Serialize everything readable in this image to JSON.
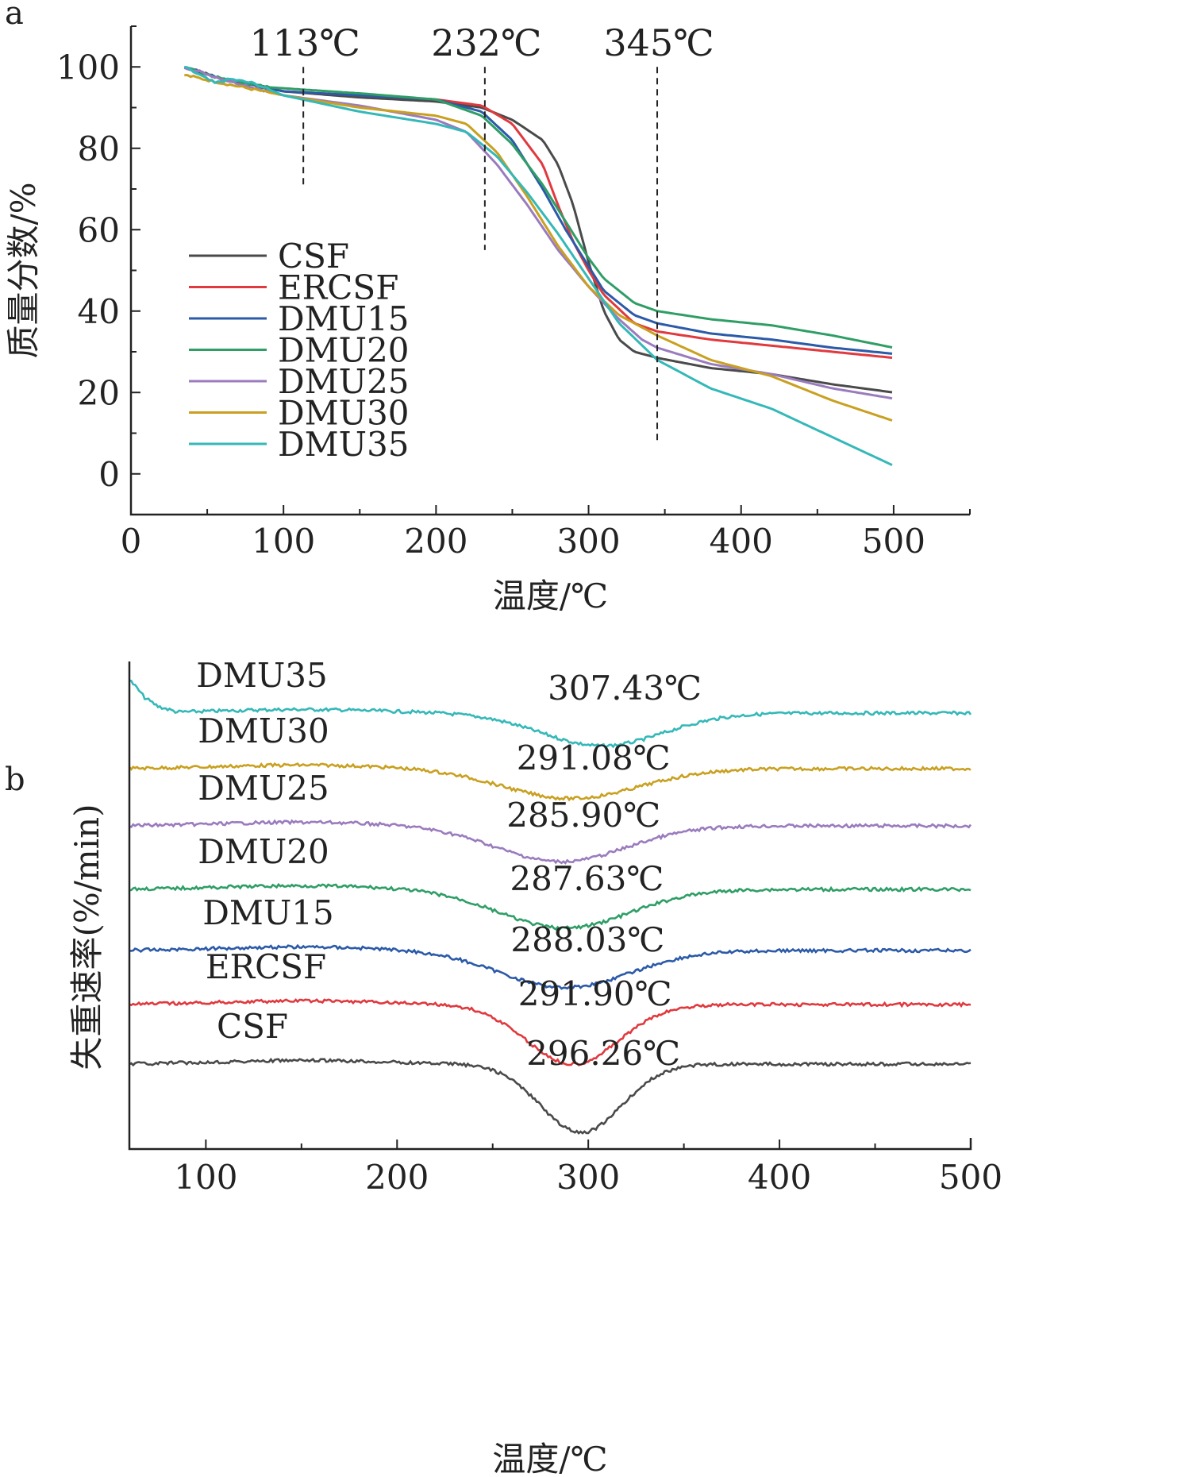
{
  "panel_labels": {
    "a": "a",
    "b": "b"
  },
  "chart_data": [
    {
      "id": "a",
      "type": "line",
      "xlabel": "温度/℃",
      "ylabel": "质量分数/%",
      "xlim": [
        0,
        550
      ],
      "ylim": [
        -10,
        110
      ],
      "xticks": [
        0,
        100,
        200,
        300,
        400,
        500
      ],
      "yticks": [
        0,
        20,
        40,
        60,
        80,
        100
      ],
      "legend_position": "middle-left",
      "vlines": [
        {
          "x": 113,
          "label": "113℃",
          "y_range": [
            70,
            100
          ]
        },
        {
          "x": 232,
          "label": "232℃",
          "y_range": [
            55,
            100
          ]
        },
        {
          "x": 345,
          "label": "345℃",
          "y_range": [
            8,
            100
          ]
        }
      ],
      "series": [
        {
          "name": "CSF",
          "color": "#4a4a4a",
          "points": [
            [
              35,
              100
            ],
            [
              60,
              97
            ],
            [
              100,
              94
            ],
            [
              150,
              92.5
            ],
            [
              200,
              91.5
            ],
            [
              230,
              90
            ],
            [
              250,
              87
            ],
            [
              270,
              82
            ],
            [
              280,
              76
            ],
            [
              290,
              66
            ],
            [
              300,
              52
            ],
            [
              310,
              40
            ],
            [
              320,
              33
            ],
            [
              330,
              30
            ],
            [
              345,
              28.5
            ],
            [
              380,
              26
            ],
            [
              420,
              24.5
            ],
            [
              460,
              22
            ],
            [
              500,
              20
            ]
          ]
        },
        {
          "name": "ERCSF",
          "color": "#e0393e",
          "points": [
            [
              35,
              100
            ],
            [
              60,
              97
            ],
            [
              100,
              94
            ],
            [
              150,
              93
            ],
            [
              200,
              92
            ],
            [
              230,
              90.5
            ],
            [
              250,
              86
            ],
            [
              270,
              76
            ],
            [
              280,
              66
            ],
            [
              290,
              57
            ],
            [
              300,
              50
            ],
            [
              310,
              44
            ],
            [
              330,
              37
            ],
            [
              345,
              35
            ],
            [
              380,
              33
            ],
            [
              420,
              31.5
            ],
            [
              460,
              30
            ],
            [
              500,
              28.5
            ]
          ]
        },
        {
          "name": "DMU15",
          "color": "#2b5aa8",
          "points": [
            [
              35,
              100
            ],
            [
              60,
              97
            ],
            [
              100,
              94
            ],
            [
              150,
              93
            ],
            [
              200,
              92
            ],
            [
              230,
              89
            ],
            [
              250,
              82
            ],
            [
              270,
              70
            ],
            [
              285,
              60
            ],
            [
              300,
              51
            ],
            [
              310,
              45
            ],
            [
              330,
              39
            ],
            [
              345,
              37
            ],
            [
              380,
              34.5
            ],
            [
              420,
              33
            ],
            [
              460,
              31
            ],
            [
              500,
              29.5
            ]
          ]
        },
        {
          "name": "DMU20",
          "color": "#2f9e66",
          "points": [
            [
              35,
              100
            ],
            [
              60,
              97
            ],
            [
              90,
              95
            ],
            [
              150,
              93.5
            ],
            [
              200,
              92
            ],
            [
              230,
              88
            ],
            [
              250,
              81
            ],
            [
              270,
              71
            ],
            [
              285,
              62
            ],
            [
              300,
              53
            ],
            [
              310,
              48
            ],
            [
              330,
              42
            ],
            [
              345,
              40
            ],
            [
              380,
              38
            ],
            [
              420,
              36.5
            ],
            [
              460,
              34
            ],
            [
              500,
              31
            ]
          ]
        },
        {
          "name": "DMU25",
          "color": "#9a7cbe",
          "points": [
            [
              35,
              100
            ],
            [
              60,
              97
            ],
            [
              100,
              93
            ],
            [
              150,
              90.5
            ],
            [
              200,
              87
            ],
            [
              220,
              84
            ],
            [
              240,
              76
            ],
            [
              260,
              66
            ],
            [
              280,
              55
            ],
            [
              300,
              46
            ],
            [
              320,
              38
            ],
            [
              335,
              33
            ],
            [
              345,
              31
            ],
            [
              380,
              27
            ],
            [
              420,
              24.5
            ],
            [
              460,
              21
            ],
            [
              500,
              18.5
            ]
          ]
        },
        {
          "name": "DMU30",
          "color": "#c9a020",
          "points": [
            [
              35,
              98
            ],
            [
              60,
              96
            ],
            [
              100,
              93
            ],
            [
              150,
              90
            ],
            [
              200,
              88
            ],
            [
              220,
              86
            ],
            [
              240,
              79
            ],
            [
              260,
              68
            ],
            [
              280,
              56
            ],
            [
              300,
              46
            ],
            [
              320,
              39
            ],
            [
              345,
              34
            ],
            [
              380,
              28
            ],
            [
              420,
              24
            ],
            [
              460,
              18
            ],
            [
              500,
              13
            ]
          ]
        },
        {
          "name": "DMU35",
          "color": "#35b8b8",
          "points": [
            [
              35,
              100
            ],
            [
              45,
              98
            ],
            [
              55,
              96
            ],
            [
              65,
              97
            ],
            [
              80,
              96
            ],
            [
              100,
              93
            ],
            [
              150,
              89
            ],
            [
              200,
              86
            ],
            [
              220,
              84
            ],
            [
              240,
              78
            ],
            [
              260,
              69
            ],
            [
              280,
              59
            ],
            [
              300,
              48
            ],
            [
              320,
              37
            ],
            [
              345,
              28
            ],
            [
              380,
              21
            ],
            [
              420,
              16
            ],
            [
              460,
              9
            ],
            [
              500,
              2
            ]
          ]
        }
      ]
    },
    {
      "id": "b",
      "type": "line",
      "xlabel": "温度/℃",
      "ylabel": "失重速率(%/min)",
      "xlim": [
        60,
        500
      ],
      "xticks": [
        100,
        200,
        300,
        400,
        500
      ],
      "note": "curves vertically offset; y values in arbitrary units (0 = baseline of each curve, negative = dip)",
      "series": [
        {
          "name": "DMU35",
          "color": "#35b8b8",
          "offset": 6,
          "peak_label": "307.43℃",
          "peak_x": 307.43,
          "peak_depth": 0.55,
          "peak_width": 45,
          "points": [
            [
              60,
              0.55
            ],
            [
              63,
              0.45
            ],
            [
              68,
              0.25
            ],
            [
              75,
              0.1
            ],
            [
              85,
              0
            ],
            [
              500,
              0
            ]
          ]
        },
        {
          "name": "DMU30",
          "color": "#c9a020",
          "offset": 5,
          "peak_label": "291.08℃",
          "peak_x": 291.08,
          "peak_depth": 0.5,
          "peak_width": 50,
          "points": [
            [
              60,
              0
            ],
            [
              500,
              0
            ]
          ]
        },
        {
          "name": "DMU25",
          "color": "#9a7cbe",
          "offset": 4,
          "peak_label": "285.90℃",
          "peak_x": 285.9,
          "peak_depth": 0.6,
          "peak_width": 48,
          "points": [
            [
              60,
              0
            ],
            [
              500,
              0
            ]
          ]
        },
        {
          "name": "DMU20",
          "color": "#2f9e66",
          "offset": 3,
          "peak_label": "287.63℃",
          "peak_x": 287.63,
          "peak_depth": 0.65,
          "peak_width": 48,
          "points": [
            [
              60,
              0
            ],
            [
              500,
              0
            ]
          ]
        },
        {
          "name": "DMU15",
          "color": "#2b5aa8",
          "offset": 2,
          "peak_label": "288.03℃",
          "peak_x": 288.03,
          "peak_depth": 0.62,
          "peak_width": 48,
          "points": [
            [
              60,
              0
            ],
            [
              500,
              0
            ]
          ]
        },
        {
          "name": "ERCSF",
          "color": "#e0393e",
          "offset": 1,
          "peak_label": "291.90℃",
          "peak_x": 291.9,
          "peak_depth": 1.0,
          "peak_width": 34,
          "points": [
            [
              60,
              0
            ],
            [
              500,
              0
            ]
          ]
        },
        {
          "name": "CSF",
          "color": "#4a4a4a",
          "offset": 0,
          "peak_label": "296.26℃",
          "peak_x": 296.26,
          "peak_depth": 1.15,
          "peak_width": 30,
          "points": [
            [
              60,
              0
            ],
            [
              500,
              0
            ]
          ]
        }
      ]
    }
  ]
}
